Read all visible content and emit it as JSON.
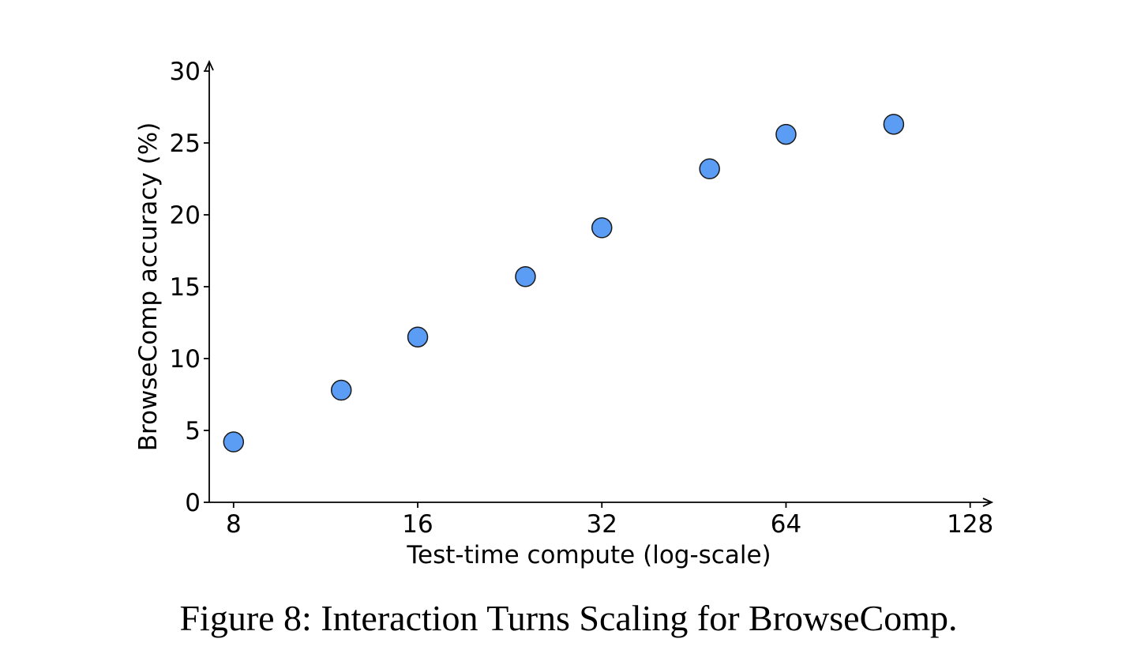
{
  "figure": {
    "caption": "Figure 8: Interaction Turns Scaling for BrowseComp."
  },
  "chart_data": {
    "type": "scatter",
    "title": "",
    "xlabel": "Test-time compute (log-scale)",
    "ylabel": "BrowseComp accuracy (%)",
    "xscale": "log2",
    "xlim": [
      7.3,
      138
    ],
    "ylim": [
      0,
      30
    ],
    "xticks": [
      8,
      16,
      32,
      64,
      128
    ],
    "xtick_labels": [
      "8",
      "16",
      "32",
      "64",
      "128"
    ],
    "yticks": [
      0,
      5,
      10,
      15,
      20,
      25,
      30
    ],
    "ytick_labels": [
      "0",
      "5",
      "10",
      "15",
      "20",
      "25",
      "30"
    ],
    "grid": false,
    "legend": "none",
    "marker_color": "#5b9cf5",
    "marker_edge_color": "#1a1a1a",
    "series": [
      {
        "x": [
          8,
          12,
          16,
          24,
          32,
          48,
          64,
          96
        ],
        "y": [
          4.2,
          7.8,
          11.5,
          15.7,
          19.1,
          23.2,
          25.6,
          26.3
        ]
      }
    ]
  }
}
